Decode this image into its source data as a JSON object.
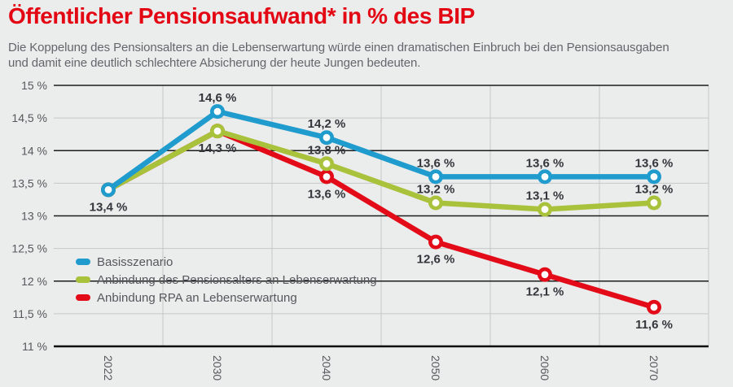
{
  "header": {
    "title": "Öffentlicher Pensionsaufwand* in % des BIP",
    "subtitle_line1": "Die Koppelung des Pensionsalters an die Lebenserwartung würde einen dramatischen Einbruch bei den Pensionsausgaben",
    "subtitle_line2": "und damit eine deutlich schlechtere Absicherung der heute Jungen bedeuten."
  },
  "colors": {
    "title_red": "#e30613",
    "text_gray": "#63666b",
    "axis_label_gray": "#55585c",
    "data_label": "#33363b",
    "grid_light": "#c6c8c9",
    "grid_dark": "#1c1c1c",
    "axis_line": "#0d0d0d",
    "background": "#ebecec"
  },
  "chart_data": {
    "type": "line",
    "title": "Öffentlicher Pensionsaufwand* in % des BIP",
    "x_categories": [
      "2022",
      "2030",
      "2040",
      "2050",
      "2060",
      "2070"
    ],
    "y_axis": {
      "min": 11,
      "max": 15,
      "unit": "%",
      "ticks": [
        {
          "value": 15,
          "label": "15 %",
          "major": true
        },
        {
          "value": 14.5,
          "label": "14,5 %",
          "major": false
        },
        {
          "value": 14,
          "label": "14 %",
          "major": true
        },
        {
          "value": 13.5,
          "label": "13,5 %",
          "major": false
        },
        {
          "value": 13,
          "label": "13 %",
          "major": true
        },
        {
          "value": 12.5,
          "label": "12,5 %",
          "major": false
        },
        {
          "value": 12,
          "label": "12 %",
          "major": true
        },
        {
          "value": 11.5,
          "label": "11,5 %",
          "major": false
        },
        {
          "value": 11,
          "label": "11 %",
          "major": true,
          "axis": true
        }
      ]
    },
    "grid": "horizontal-lines-plus-vertical-midpoint-lines",
    "legend_position": "inside-left",
    "series": [
      {
        "name": "Basisszenario",
        "color": "#1f9ccd",
        "values": [
          13.4,
          14.6,
          14.2,
          13.6,
          13.6,
          13.6
        ],
        "point_labels": [
          "13,4 %",
          "14,6 %",
          "14,2 %",
          "13,6 %",
          "13,6 %",
          "13,6 %"
        ],
        "label_positions": [
          "below",
          "above",
          "above",
          "above",
          "above",
          "above"
        ]
      },
      {
        "name": "Anbindung des Pensionsalters an Lebenserwartung",
        "color": "#a9c23b",
        "values": [
          13.4,
          14.3,
          13.8,
          13.2,
          13.1,
          13.2
        ],
        "point_labels": [
          null,
          "14,3 %",
          "13,8 %",
          "13,2 %",
          "13,1 %",
          "13,2 %"
        ],
        "label_positions": [
          null,
          "below",
          "above",
          "above",
          "above",
          "above"
        ]
      },
      {
        "name": "Anbindung RPA an Lebenserwartung",
        "color": "#e30b17",
        "values": [
          13.4,
          14.3,
          13.6,
          12.6,
          12.1,
          11.6
        ],
        "point_labels": [
          null,
          null,
          "13,6 %",
          "12,6 %",
          "12,1 %",
          "11,6 %"
        ],
        "label_positions": [
          null,
          null,
          "below",
          "below",
          "below",
          "below"
        ]
      }
    ]
  }
}
